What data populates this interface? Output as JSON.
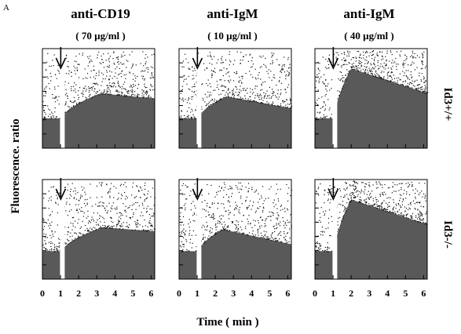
{
  "figure": {
    "panel_letter": "A",
    "ylabel": "Fluorescence. ratio",
    "xlabel": "Time ( min )",
    "columns": [
      {
        "title": "anti-CD19",
        "concentration": "( 70 µg/ml )"
      },
      {
        "title": "anti-IgM",
        "concentration": "( 10 µg/ml )"
      },
      {
        "title": "anti-IgM",
        "concentration": "( 40 µg/ml )"
      }
    ],
    "rows": [
      {
        "label": "Id3+/+"
      },
      {
        "label": "Id3-/-"
      }
    ]
  },
  "chart_data": [
    {
      "type": "scatter",
      "stimulus": "anti-CD19 ( 70 µg/ml )",
      "genotype": "Id3+/+",
      "stimulus_time_min": 1.1,
      "baseline": 0.3,
      "peak": 0.55,
      "plateau": 0.5,
      "peak_time": 3.2,
      "xlim": [
        0,
        6.2
      ],
      "x_ticks": [
        0,
        1,
        2,
        3,
        4,
        5,
        6
      ],
      "color": "#3c3c3c",
      "arrow_color": "#000000"
    },
    {
      "type": "scatter",
      "stimulus": "anti-IgM ( 10 µg/ml )",
      "genotype": "Id3+/+",
      "stimulus_time_min": 1.1,
      "baseline": 0.3,
      "peak": 0.52,
      "plateau": 0.4,
      "peak_time": 2.6,
      "xlim": [
        0,
        6.2
      ],
      "x_ticks": [
        0,
        1,
        2,
        3,
        4,
        5,
        6
      ],
      "color": "#3c3c3c",
      "arrow_color": "#000000"
    },
    {
      "type": "scatter",
      "stimulus": "anti-IgM ( 40 µg/ml )",
      "genotype": "Id3+/+",
      "stimulus_time_min": 1.1,
      "baseline": 0.3,
      "peak": 0.8,
      "plateau": 0.55,
      "peak_time": 2.0,
      "xlim": [
        0,
        6.2
      ],
      "x_ticks": [
        0,
        1,
        2,
        3,
        4,
        5,
        6
      ],
      "color": "#3c3c3c",
      "arrow_color": "#000000"
    },
    {
      "type": "scatter",
      "stimulus": "anti-CD19 ( 70 µg/ml )",
      "genotype": "Id3-/-",
      "stimulus_time_min": 1.1,
      "baseline": 0.28,
      "peak": 0.52,
      "plateau": 0.48,
      "peak_time": 3.3,
      "xlim": [
        0,
        6.2
      ],
      "x_ticks": [
        0,
        1,
        2,
        3,
        4,
        5,
        6
      ],
      "color": "#3c3c3c",
      "arrow_color": "#000000"
    },
    {
      "type": "scatter",
      "stimulus": "anti-IgM ( 10 µg/ml )",
      "genotype": "Id3-/-",
      "stimulus_time_min": 1.1,
      "baseline": 0.28,
      "peak": 0.5,
      "plateau": 0.35,
      "peak_time": 2.4,
      "xlim": [
        0,
        6.2
      ],
      "x_ticks": [
        0,
        1,
        2,
        3,
        4,
        5,
        6
      ],
      "color": "#3c3c3c",
      "arrow_color": "#000000"
    },
    {
      "type": "scatter",
      "stimulus": "anti-IgM ( 40 µg/ml )",
      "genotype": "Id3-/-",
      "stimulus_time_min": 1.1,
      "baseline": 0.28,
      "peak": 0.8,
      "plateau": 0.55,
      "peak_time": 2.0,
      "xlim": [
        0,
        6.2
      ],
      "x_ticks": [
        0,
        1,
        2,
        3,
        4,
        5,
        6
      ],
      "color": "#3c3c3c",
      "arrow_color": "#000000"
    }
  ]
}
